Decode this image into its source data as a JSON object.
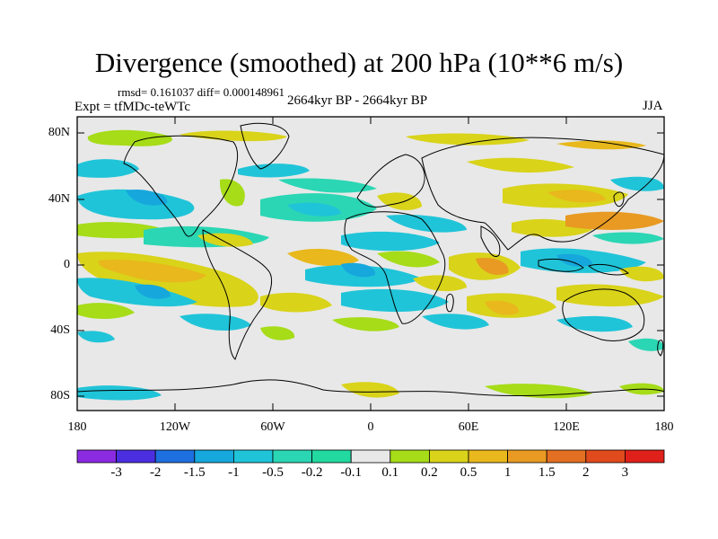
{
  "title": "Divergence (smoothed) at 200 hPa (10**6 m/s)",
  "stats": "rmsd= 0.161037  diff= 0.000148961",
  "experiment": "Expt = tfMDc-teWTc",
  "period": "2664kyr BP - 2664kyr BP",
  "season": "JJA",
  "axes": {
    "lat_ticks": [
      "80N",
      "40N",
      "0",
      "40S",
      "80S"
    ],
    "lon_ticks": [
      "180",
      "120W",
      "60W",
      "0",
      "60E",
      "120E",
      "180"
    ]
  },
  "colorbar": {
    "labels": [
      "-3",
      "-2",
      "-1.5",
      "-1",
      "-0.5",
      "-0.2",
      "-0.1",
      "0.1",
      "0.2",
      "0.5",
      "1",
      "1.5",
      "2",
      "3"
    ],
    "colors": [
      "#8a2be2",
      "#4b2ee0",
      "#1e6fe0",
      "#16a7dc",
      "#20c4d8",
      "#2bd6b4",
      "#e8e8e8",
      "#a6dc18",
      "#d9d31a",
      "#e8b81c",
      "#e89a22",
      "#e36f22",
      "#e04a1c",
      "#e0201a"
    ]
  },
  "colors": {
    "background": "#e8e8e8",
    "coast": "#000000"
  }
}
